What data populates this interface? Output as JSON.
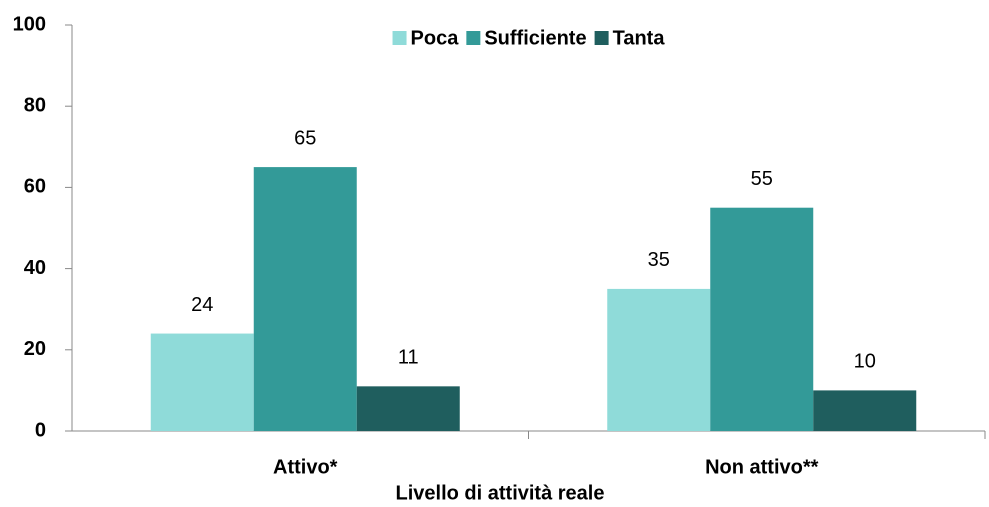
{
  "chart_data": {
    "type": "bar",
    "categories": [
      "Attivo*",
      "Non attivo**"
    ],
    "series": [
      {
        "name": "Poca",
        "color": "#8fdbd9",
        "values": [
          24,
          35
        ]
      },
      {
        "name": "Sufficiente",
        "color": "#339a98",
        "values": [
          65,
          55
        ]
      },
      {
        "name": "Tanta",
        "color": "#1f5e5e",
        "values": [
          11,
          10
        ]
      }
    ],
    "x_label": "Livello di attività reale",
    "ylim": [
      0,
      100
    ],
    "yticks": [
      0,
      20,
      40,
      60,
      80,
      100
    ],
    "grid": false,
    "legend": "top"
  }
}
